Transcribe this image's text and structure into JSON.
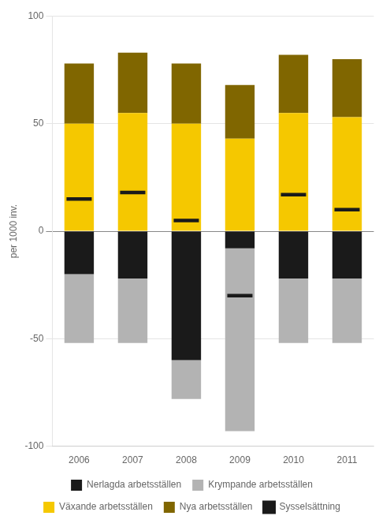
{
  "chart_data": {
    "type": "bar",
    "stacked": true,
    "categories": [
      "2006",
      "2007",
      "2008",
      "2009",
      "2010",
      "2011"
    ],
    "series": [
      {
        "name": "Nerlagda arbetsställen",
        "color": "#1a1a1a",
        "values": [
          -20,
          -22,
          -60,
          -8,
          -22,
          -22
        ]
      },
      {
        "name": "Krympande arbetsställen",
        "color": "#b3b3b3",
        "values": [
          -32,
          -30,
          -18,
          -85,
          -30,
          -30
        ]
      },
      {
        "name": "Växande arbetsställen",
        "color": "#f5c800",
        "values": [
          50,
          55,
          50,
          43,
          55,
          53
        ]
      },
      {
        "name": "Nya arbetsställen",
        "color": "#806600",
        "values": [
          28,
          28,
          28,
          25,
          27,
          27
        ]
      },
      {
        "name": "Sysselsättning",
        "color": "#1a1a1a",
        "type": "line",
        "marker": "line",
        "line_style": "none",
        "values": [
          15,
          18,
          5,
          -30,
          17,
          10
        ]
      }
    ],
    "ylabel": "per 1000 inv.",
    "ylim": [
      -100,
      100
    ],
    "yticks": [
      -100,
      -50,
      0,
      50,
      100
    ],
    "grid": true,
    "legend": "bottom"
  }
}
